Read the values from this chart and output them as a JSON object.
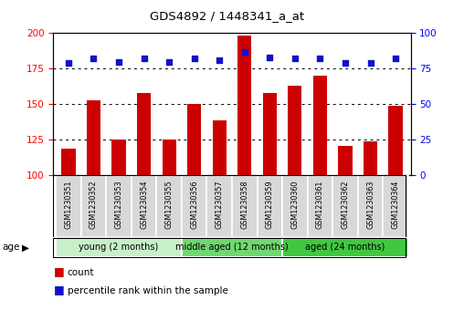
{
  "title": "GDS4892 / 1448341_a_at",
  "samples": [
    "GSM1230351",
    "GSM1230352",
    "GSM1230353",
    "GSM1230354",
    "GSM1230355",
    "GSM1230356",
    "GSM1230357",
    "GSM1230358",
    "GSM1230359",
    "GSM1230360",
    "GSM1230361",
    "GSM1230362",
    "GSM1230363",
    "GSM1230364"
  ],
  "counts": [
    119,
    153,
    125,
    158,
    125,
    150,
    139,
    198,
    158,
    163,
    170,
    121,
    124,
    149
  ],
  "percentiles": [
    79,
    82,
    80,
    82,
    80,
    82,
    81,
    87,
    83,
    82,
    82,
    79,
    79,
    82
  ],
  "ylim_left": [
    100,
    200
  ],
  "ylim_right": [
    0,
    100
  ],
  "yticks_left": [
    100,
    125,
    150,
    175,
    200
  ],
  "yticks_right": [
    0,
    25,
    50,
    75,
    100
  ],
  "groups": [
    {
      "label": "young (2 months)",
      "start": 0,
      "end": 5
    },
    {
      "label": "middle aged (12 months)",
      "start": 5,
      "end": 9
    },
    {
      "label": "aged (24 months)",
      "start": 9,
      "end": 14
    }
  ],
  "group_colors": [
    "#c8f0c8",
    "#70d870",
    "#40c840"
  ],
  "bar_color": "#CC0000",
  "dot_color": "#1111CC",
  "bar_width": 0.55,
  "legend_count_label": "count",
  "legend_percentile_label": "percentile rank within the sample",
  "cell_color": "#d8d8d8",
  "cell_edge_color": "#ffffff"
}
